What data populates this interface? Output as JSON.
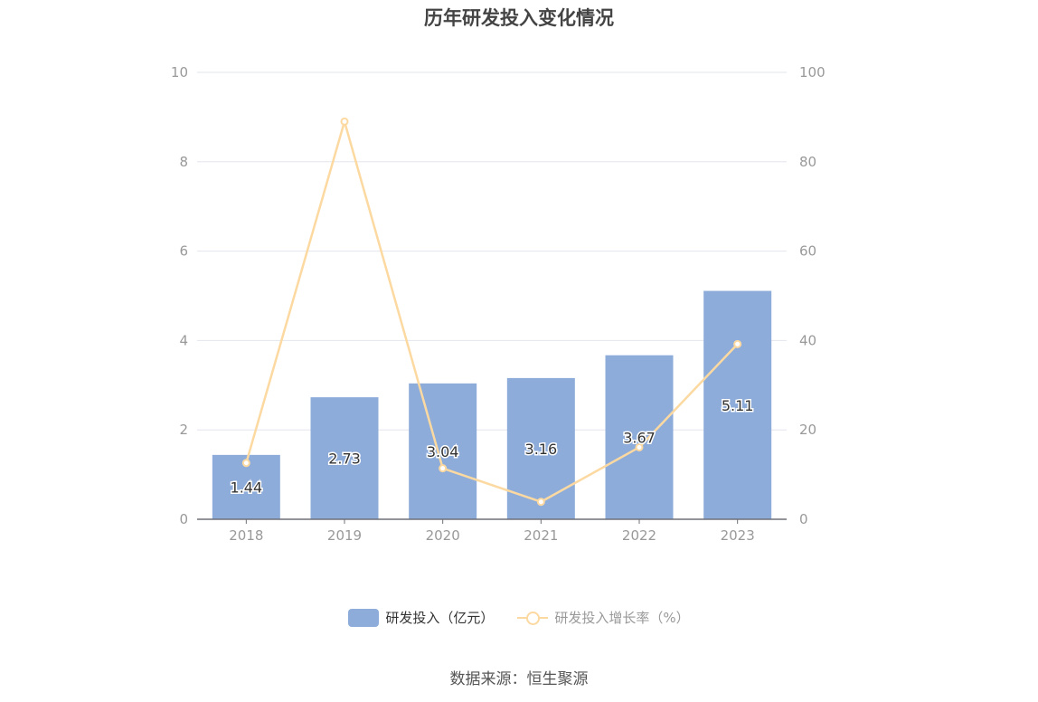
{
  "title": "历年研发投入变化情况",
  "source": "数据来源：恒生聚源",
  "colors": {
    "bar": "#8dacda",
    "line": "#fcd9a1",
    "grid": "#e3e6ee",
    "axis": "#6e7079",
    "tick_text": "#999999",
    "label_text": "#333333"
  },
  "legend": {
    "bar_label": "研发投入（亿元）",
    "line_label": "研发投入增长率（%）"
  },
  "chart_data": {
    "type": "bar",
    "categories": [
      "2018",
      "2019",
      "2020",
      "2021",
      "2022",
      "2023"
    ],
    "series": [
      {
        "name": "研发投入（亿元）",
        "type": "bar",
        "axis": "left",
        "values": [
          1.44,
          2.73,
          3.04,
          3.16,
          3.67,
          5.11
        ]
      },
      {
        "name": "研发投入增长率（%）",
        "type": "line",
        "axis": "right",
        "values": [
          12.6,
          89.0,
          11.4,
          3.9,
          16.1,
          39.2
        ]
      }
    ],
    "data_labels": [
      "1.44",
      "2.73",
      "3.04",
      "3.16",
      "3.67",
      "5.11"
    ],
    "y_left": {
      "lim": [
        0,
        10
      ],
      "ticks": [
        "0",
        "2",
        "4",
        "6",
        "8",
        "10"
      ]
    },
    "y_right": {
      "lim": [
        0,
        100
      ],
      "ticks": [
        "0",
        "20",
        "40",
        "60",
        "80",
        "100"
      ]
    },
    "grid": true,
    "legend_position": "bottom"
  }
}
